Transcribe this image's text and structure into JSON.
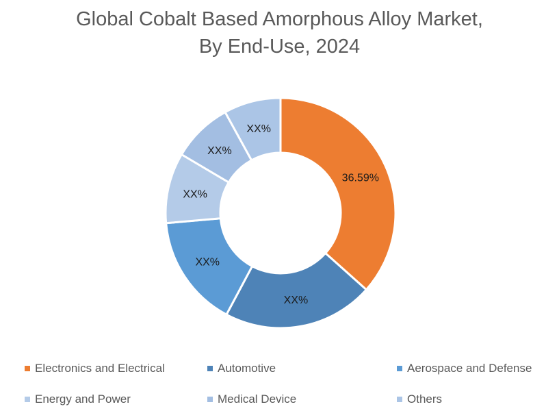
{
  "chart_data": {
    "type": "pie",
    "donut": true,
    "title": "Global Cobalt Based Amorphous Alloy Market,",
    "subtitle": "By End-Use, 2024",
    "categories": [
      "Electronics and Electrical",
      "Automotive",
      "Aerospace and Defense",
      "Energy and Power",
      "Medical Device",
      "Others"
    ],
    "values": [
      36.59,
      21.2,
      15.8,
      9.9,
      8.5,
      8.0
    ],
    "data_labels": [
      "36.59%",
      "XX%",
      "XX%",
      "XX%",
      "XX%",
      "XX%"
    ],
    "colors": [
      "#ED7D31",
      "#4E83B7",
      "#5B9BD5",
      "#B4CBE8",
      "#A3BEE2",
      "#ABC5E6"
    ],
    "legend_position": "bottom"
  }
}
